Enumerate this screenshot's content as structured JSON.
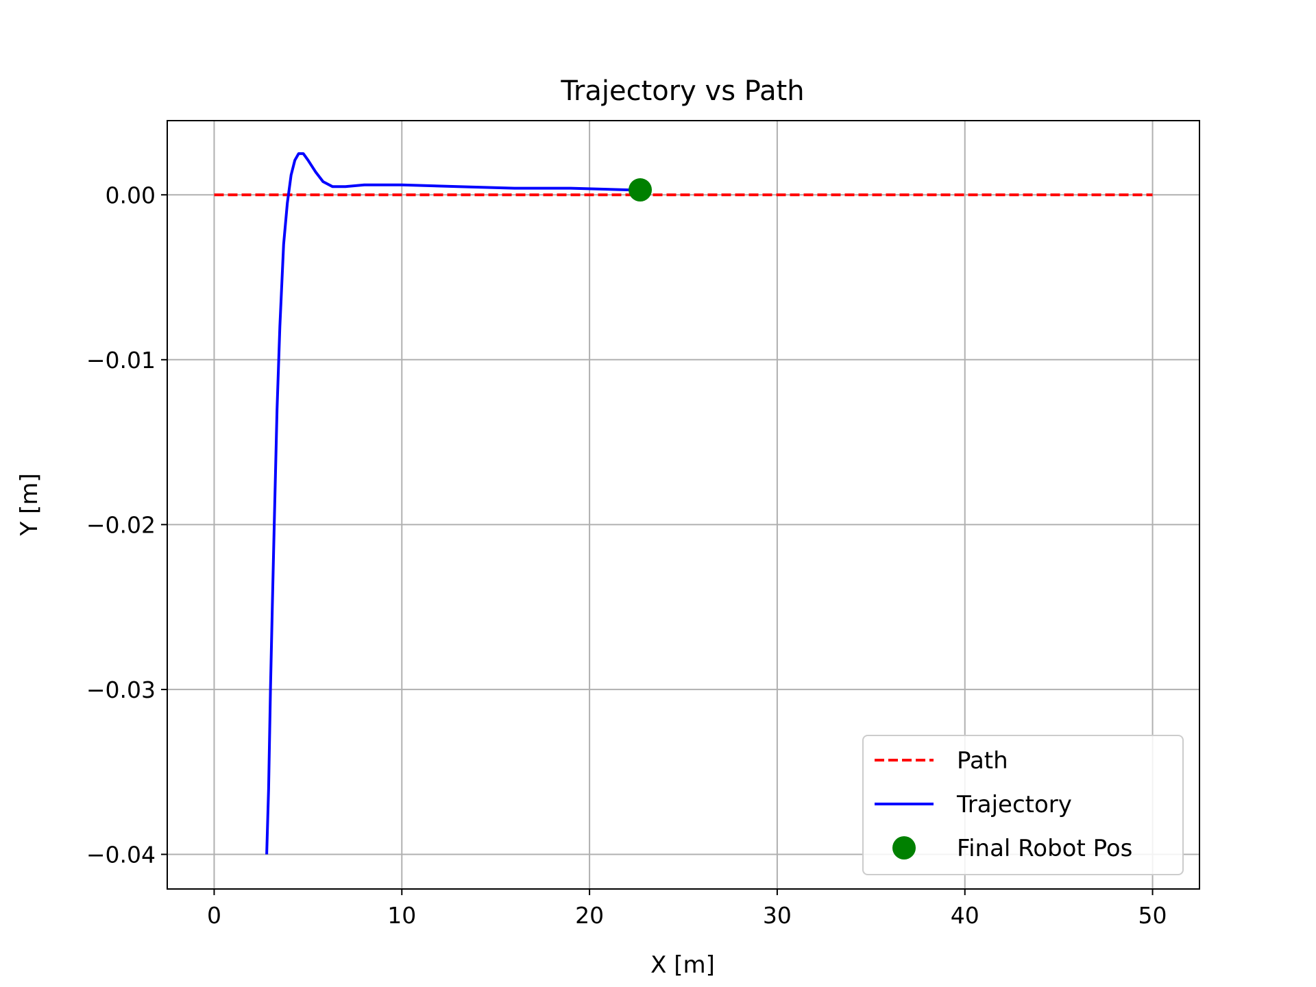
{
  "chart_data": {
    "type": "line",
    "title": "Trajectory vs Path",
    "xlabel": "X [m]",
    "ylabel": "Y [m]",
    "xlim": [
      -2.5,
      52.5
    ],
    "ylim": [
      -0.0421,
      0.0045
    ],
    "x_ticks": [
      0,
      10,
      20,
      30,
      40,
      50
    ],
    "x_tick_labels": [
      "0",
      "10",
      "20",
      "30",
      "40",
      "50"
    ],
    "y_ticks": [
      0.0,
      -0.01,
      -0.02,
      -0.03,
      -0.04
    ],
    "y_tick_labels": [
      "0.00",
      "−0.01",
      "−0.02",
      "−0.03",
      "−0.04"
    ],
    "grid": true,
    "legend_position": "lower-right",
    "series": [
      {
        "name": "Path",
        "style": "dashed",
        "color": "#ff0000",
        "x": [
          0,
          50
        ],
        "y": [
          0.0,
          0.0
        ]
      },
      {
        "name": "Trajectory",
        "style": "solid",
        "color": "#0000ff",
        "x": [
          2.8,
          2.9,
          3.0,
          3.1,
          3.2,
          3.35,
          3.5,
          3.7,
          3.9,
          4.1,
          4.3,
          4.5,
          4.75,
          5.0,
          5.4,
          5.8,
          6.3,
          7.0,
          8.0,
          9.0,
          10.0,
          13.0,
          16.0,
          19.0,
          22.0,
          22.7
        ],
        "y": [
          -0.04,
          -0.036,
          -0.03,
          -0.025,
          -0.02,
          -0.013,
          -0.008,
          -0.003,
          -0.0005,
          0.0012,
          0.0021,
          0.0025,
          0.0025,
          0.0021,
          0.0014,
          0.0008,
          0.0005,
          0.0005,
          0.0006,
          0.0006,
          0.0006,
          0.0005,
          0.0004,
          0.0004,
          0.0003,
          0.0003
        ]
      },
      {
        "name": "Final Robot Pos",
        "style": "marker",
        "color": "#008000",
        "x": [
          22.7
        ],
        "y": [
          0.0003
        ]
      }
    ]
  }
}
